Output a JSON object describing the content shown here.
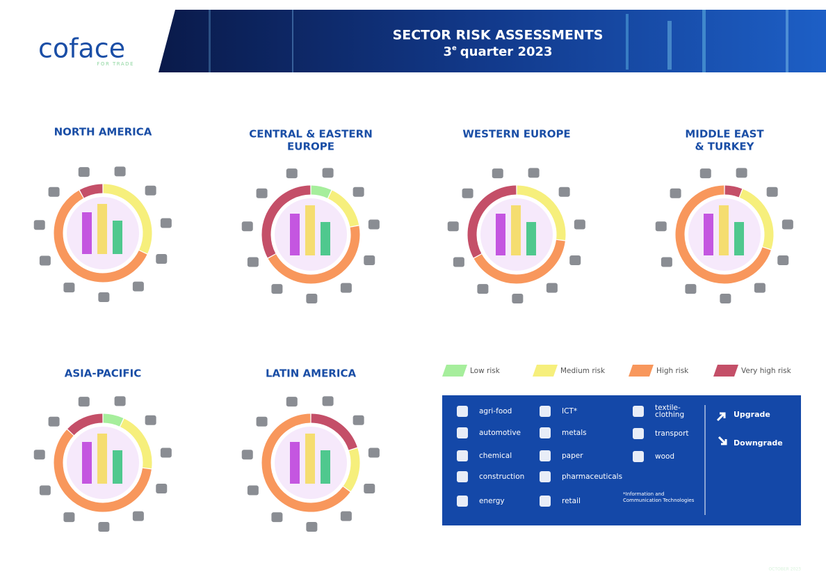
{
  "header": {
    "logo": "coface",
    "tagline": "FOR TRADE",
    "title": "SECTOR RISK ASSESSMENTS",
    "quarter_number": "3",
    "quarter_suffix": "e",
    "quarter_rest": "quarter 2023"
  },
  "regions": [
    {
      "title": [
        "NORTH AMERICA"
      ]
    },
    {
      "title": [
        "CENTRAL & EASTERN",
        "EUROPE"
      ]
    },
    {
      "title": [
        "WESTERN EUROPE"
      ]
    },
    {
      "title": [
        "MIDDLE EAST",
        "& TURKEY"
      ]
    },
    {
      "title": [
        "ASIA-PACIFIC"
      ]
    },
    {
      "title": [
        "LATIN AMERICA"
      ]
    }
  ],
  "risk_legend": [
    {
      "label": "Low risk",
      "color": "#a6ee9c"
    },
    {
      "label": "Medium risk",
      "color": "#f6ef7c"
    },
    {
      "label": "High risk",
      "color": "#f8975c"
    },
    {
      "label": "Very high risk",
      "color": "#c44f68"
    }
  ],
  "sectors": [
    [
      "agri-food"
    ],
    [
      "automotive"
    ],
    [
      "chemical"
    ],
    [
      "construction"
    ],
    [
      "energy"
    ],
    [
      "ICT*"
    ],
    [
      "metals"
    ],
    [
      "paper"
    ],
    [
      "pharmaceuticals"
    ],
    [
      "retail"
    ],
    [
      "textile-",
      "clothing"
    ],
    [
      "transport"
    ],
    [
      "wood"
    ]
  ],
  "footnote": [
    "*Information and",
    "Communication Technologies"
  ],
  "changes": [
    "Upgrade",
    "Downgrade"
  ],
  "date": "OCTOBER 2023"
}
